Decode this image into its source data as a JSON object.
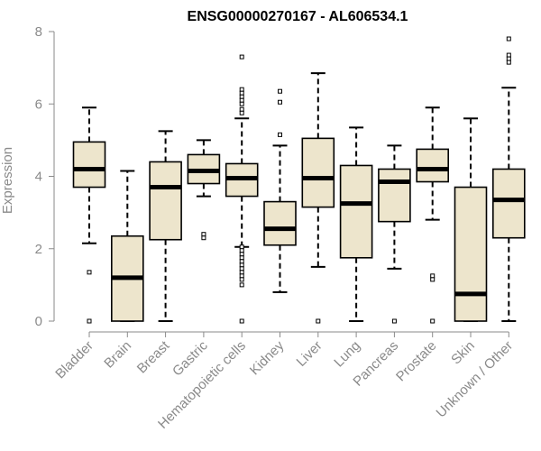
{
  "chart_data": {
    "type": "boxplot",
    "title": "ENSG00000270167 - AL606534.1",
    "xlabel": "",
    "ylabel": "Expression",
    "ylim": [
      0,
      8
    ],
    "yticks": [
      0,
      2,
      4,
      6,
      8
    ],
    "box_color": "#EDE5CC",
    "categories": [
      "Bladder",
      "Brain",
      "Breast",
      "Gastric",
      "Hematopoietic cells",
      "Kidney",
      "Liver",
      "Lung",
      "Pancreas",
      "Prostate",
      "Skin",
      "Unknown / Other"
    ],
    "boxes": [
      {
        "category": "Bladder",
        "whisker_low": 2.15,
        "q1": 3.7,
        "median": 4.2,
        "q3": 4.95,
        "whisker_high": 5.9,
        "outliers": [
          1.35,
          0.0
        ]
      },
      {
        "category": "Brain",
        "whisker_low": 0.0,
        "q1": 0.0,
        "median": 1.2,
        "q3": 2.35,
        "whisker_high": 4.15,
        "outliers": []
      },
      {
        "category": "Breast",
        "whisker_low": 0.0,
        "q1": 2.25,
        "median": 3.7,
        "q3": 4.4,
        "whisker_high": 5.25,
        "outliers": []
      },
      {
        "category": "Gastric",
        "whisker_low": 3.45,
        "q1": 3.8,
        "median": 4.15,
        "q3": 4.6,
        "whisker_high": 5.0,
        "outliers": [
          2.4,
          2.3
        ]
      },
      {
        "category": "Hematopoietic cells",
        "whisker_low": 2.05,
        "q1": 3.45,
        "median": 3.95,
        "q3": 4.35,
        "whisker_high": 5.6,
        "outliers": [
          7.3,
          6.4,
          6.3,
          6.2,
          6.1,
          6.0,
          5.85,
          5.75,
          2.05,
          1.95,
          1.85,
          1.75,
          1.65,
          1.55,
          1.45,
          1.35,
          1.25,
          1.15,
          1.0,
          0.0
        ]
      },
      {
        "category": "Kidney",
        "whisker_low": 0.8,
        "q1": 2.1,
        "median": 2.55,
        "q3": 3.3,
        "whisker_high": 4.85,
        "outliers": [
          6.35,
          6.05,
          5.15
        ]
      },
      {
        "category": "Liver",
        "whisker_low": 1.5,
        "q1": 3.15,
        "median": 3.95,
        "q3": 5.05,
        "whisker_high": 6.85,
        "outliers": [
          0.0
        ]
      },
      {
        "category": "Lung",
        "whisker_low": 0.0,
        "q1": 1.75,
        "median": 3.25,
        "q3": 4.3,
        "whisker_high": 5.35,
        "outliers": []
      },
      {
        "category": "Pancreas",
        "whisker_low": 1.45,
        "q1": 2.75,
        "median": 3.85,
        "q3": 4.2,
        "whisker_high": 4.85,
        "outliers": [
          0.0
        ]
      },
      {
        "category": "Prostate",
        "whisker_low": 2.8,
        "q1": 3.85,
        "median": 4.2,
        "q3": 4.75,
        "whisker_high": 5.9,
        "outliers": [
          1.25,
          1.15,
          0.0
        ]
      },
      {
        "category": "Skin",
        "whisker_low": 0.0,
        "q1": 0.0,
        "median": 0.75,
        "q3": 3.7,
        "whisker_high": 5.6,
        "outliers": []
      },
      {
        "category": "Unknown / Other",
        "whisker_low": 0.0,
        "q1": 2.3,
        "median": 3.35,
        "q3": 4.2,
        "whisker_high": 6.45,
        "outliers": [
          7.8,
          7.35,
          7.25,
          7.15
        ]
      }
    ]
  }
}
